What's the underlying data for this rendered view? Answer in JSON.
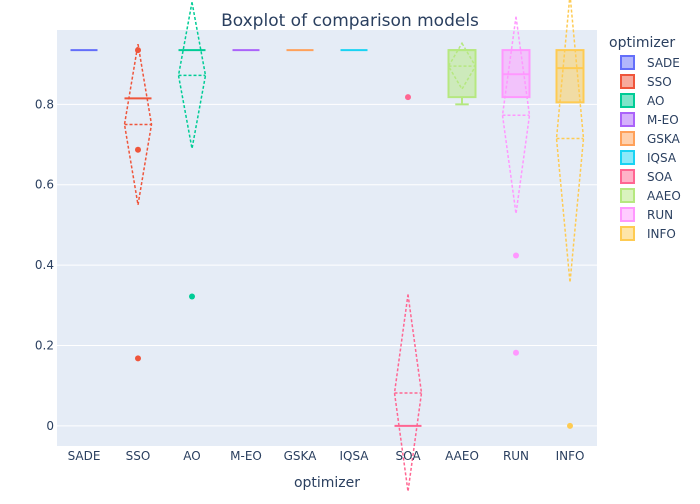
{
  "chart_data": {
    "type": "box",
    "title": "Boxplot of comparison models",
    "xlabel": "optimizer",
    "ylabel": "",
    "ylim": [
      -0.05,
      0.985
    ],
    "yticks": [
      0,
      0.2,
      0.4,
      0.6,
      0.8
    ],
    "legend": {
      "title": "optimizer",
      "position": "right"
    },
    "categories": [
      "SADE",
      "SSO",
      "AO",
      "M-EO",
      "GSKA",
      "IQSA",
      "SOA",
      "AAEO",
      "RUN",
      "INFO"
    ],
    "series": [
      {
        "name": "SADE",
        "color": "#636efa",
        "q1": 0.935,
        "median": 0.935,
        "q3": 0.935,
        "lowerfence": 0.935,
        "upperfence": 0.935,
        "mean": null,
        "sd": null,
        "outliers": []
      },
      {
        "name": "SSO",
        "color": "#EF553B",
        "q1": 0.815,
        "median": 0.815,
        "q3": 0.815,
        "lowerfence": 0.815,
        "upperfence": 0.815,
        "mean": 0.75,
        "sd": 0.2,
        "outliers": [
          0.935,
          0.687,
          0.168
        ]
      },
      {
        "name": "AO",
        "color": "#00cc96",
        "q1": 0.935,
        "median": 0.935,
        "q3": 0.935,
        "lowerfence": 0.935,
        "upperfence": 0.935,
        "mean": 0.872,
        "sd": 0.182,
        "outliers": [
          0.322
        ]
      },
      {
        "name": "M-EO",
        "color": "#ab63fa",
        "q1": 0.935,
        "median": 0.935,
        "q3": 0.935,
        "lowerfence": 0.935,
        "upperfence": 0.935,
        "mean": null,
        "sd": null,
        "outliers": []
      },
      {
        "name": "GSKA",
        "color": "#FFA15A",
        "q1": 0.935,
        "median": 0.935,
        "q3": 0.935,
        "lowerfence": 0.935,
        "upperfence": 0.935,
        "mean": null,
        "sd": null,
        "outliers": []
      },
      {
        "name": "IQSA",
        "color": "#19d3f3",
        "q1": 0.935,
        "median": 0.935,
        "q3": 0.935,
        "lowerfence": 0.935,
        "upperfence": 0.935,
        "mean": null,
        "sd": null,
        "outliers": []
      },
      {
        "name": "SOA",
        "color": "#FF6692",
        "q1": 0.0,
        "median": 0.0,
        "q3": 0.0,
        "lowerfence": 0.0,
        "upperfence": 0.0,
        "mean": 0.082,
        "sd": 0.245,
        "outliers": [
          0.818
        ]
      },
      {
        "name": "AAEO",
        "color": "#B6E880",
        "q1": 0.818,
        "median": 0.935,
        "q3": 0.935,
        "lowerfence": 0.8,
        "upperfence": 0.935,
        "mean": 0.895,
        "sd": 0.057,
        "outliers": []
      },
      {
        "name": "RUN",
        "color": "#FF97FF",
        "q1": 0.818,
        "median": 0.875,
        "q3": 0.935,
        "lowerfence": 0.818,
        "upperfence": 0.935,
        "mean": 0.773,
        "sd": 0.245,
        "outliers": [
          0.424,
          0.182
        ]
      },
      {
        "name": "INFO",
        "color": "#FECB52",
        "q1": 0.805,
        "median": 0.89,
        "q3": 0.935,
        "lowerfence": 0.805,
        "upperfence": 0.935,
        "mean": 0.715,
        "sd": 0.358,
        "outliers": [
          0.0
        ]
      }
    ]
  }
}
